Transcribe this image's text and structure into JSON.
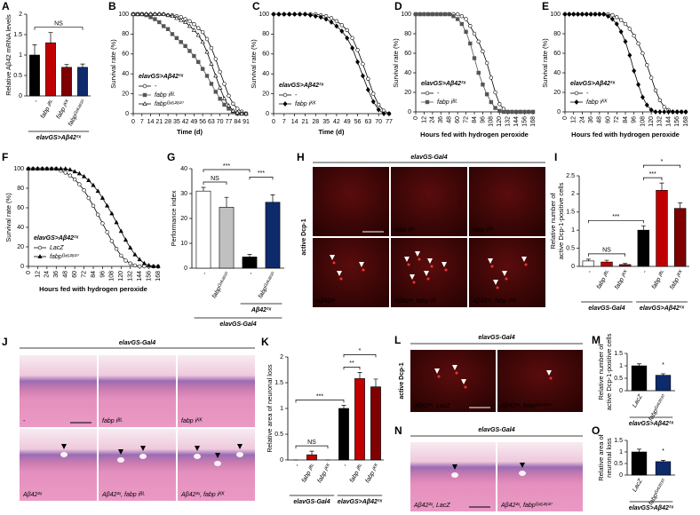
{
  "chart_data": [
    {
      "panel": "A",
      "type": "bar",
      "ylabel": "Relative Aβ42 mRNA levels",
      "categories": [
        "-",
        "fabp iᴮᴸ",
        "fabp iᴷᴷ",
        "fabpᴳˣ⁶²⁸¹⁰"
      ],
      "values": [
        1.0,
        1.3,
        0.7,
        0.7
      ],
      "errors": [
        0.25,
        0.25,
        0.07,
        0.08
      ],
      "colors": [
        "#000000",
        "#c00000",
        "#7f0000",
        "#0d2a6b"
      ],
      "ylim": [
        0,
        2
      ],
      "yticks": [
        0,
        0.5,
        1,
        1.5,
        2
      ],
      "annotations": [
        "NS"
      ],
      "groups": [
        "elavGS>Aβ42²ˣ"
      ]
    },
    {
      "panel": "B",
      "type": "line",
      "ylabel": "Survival rate (%)",
      "xlabel": "Time (d)",
      "annotation": "elavGS>Aβ42²ˣ",
      "x": [
        0,
        3.5,
        7,
        10.5,
        14,
        17.5,
        21,
        24.5,
        28,
        31.5,
        35,
        38.5,
        42,
        45.5,
        49,
        52.5,
        56,
        59.5,
        63,
        66.5,
        70,
        73.5,
        77,
        80.5,
        84,
        87.5,
        91
      ],
      "xlim": [
        0,
        91
      ],
      "xticks": [
        0,
        7,
        14,
        21,
        28,
        35,
        42,
        49,
        56,
        63,
        70,
        77,
        84,
        91
      ],
      "ylim": [
        0,
        100
      ],
      "yticks": [
        0,
        20,
        40,
        60,
        80,
        100
      ],
      "series": [
        {
          "name": "-",
          "color": "#000000",
          "marker": "circle",
          "marker_fill": "#ffffff",
          "values": [
            100,
            100,
            100,
            100,
            100,
            100,
            100,
            100,
            99,
            99,
            98,
            97,
            95,
            93,
            90,
            86,
            82,
            75,
            66,
            55,
            42,
            30,
            18,
            10,
            5,
            2,
            0
          ]
        },
        {
          "name": "fabp iᴮᴸ",
          "color": "#555555",
          "marker": "square",
          "marker_fill": "#555555",
          "values": [
            100,
            100,
            100,
            99,
            97,
            95,
            92,
            88,
            85,
            80,
            76,
            72,
            68,
            63,
            58,
            52,
            45,
            38,
            30,
            22,
            15,
            9,
            5,
            2,
            0,
            0,
            0
          ]
        },
        {
          "name": "fabpᴳˣ⁶²⁸¹⁰",
          "color": "#000000",
          "marker": "triangle",
          "marker_fill": "#ffffff",
          "values": [
            100,
            100,
            100,
            100,
            100,
            100,
            100,
            100,
            99,
            98,
            96,
            94,
            92,
            88,
            84,
            79,
            72,
            62,
            50,
            38,
            26,
            15,
            8,
            3,
            1,
            0,
            0
          ]
        }
      ]
    },
    {
      "panel": "C",
      "type": "line",
      "ylabel": "Survival rate (%)",
      "xlabel": "Time (d)",
      "annotation": "elavGS>Aβ42²ˣ",
      "x": [
        0,
        3.5,
        7,
        10.5,
        14,
        17.5,
        21,
        24.5,
        28,
        31.5,
        35,
        38.5,
        42,
        45.5,
        49,
        52.5,
        56,
        59.5,
        63,
        66.5,
        70,
        73.5,
        77
      ],
      "xlim": [
        0,
        77
      ],
      "xticks": [
        0,
        7,
        14,
        21,
        28,
        35,
        42,
        49,
        56,
        63,
        70,
        77
      ],
      "ylim": [
        0,
        100
      ],
      "yticks": [
        0,
        20,
        40,
        60,
        80,
        100
      ],
      "series": [
        {
          "name": "-",
          "color": "#000000",
          "marker": "circle",
          "marker_fill": "#ffffff",
          "values": [
            100,
            100,
            100,
            100,
            100,
            100,
            100,
            100,
            100,
            99,
            98,
            96,
            93,
            89,
            84,
            76,
            64,
            50,
            35,
            20,
            9,
            3,
            0
          ]
        },
        {
          "name": "fabp iᴷᴷ",
          "color": "#000000",
          "marker": "diamond",
          "marker_fill": "#000000",
          "values": [
            100,
            100,
            100,
            100,
            100,
            100,
            100,
            99,
            98,
            97,
            95,
            92,
            88,
            83,
            76,
            66,
            52,
            38,
            24,
            12,
            4,
            0,
            0
          ]
        }
      ]
    },
    {
      "panel": "D",
      "type": "line",
      "ylabel": "Survival rate (%)",
      "xlabel": "Hours fed with hydrogen peroxide",
      "annotation": "elavGS>Aβ42²ˣ",
      "x": [
        0,
        6,
        12,
        18,
        24,
        30,
        36,
        42,
        48,
        54,
        60,
        66,
        72,
        78,
        84,
        90,
        96,
        102,
        108,
        114,
        120,
        126,
        132,
        138,
        144,
        150,
        156,
        162,
        168
      ],
      "xlim": [
        0,
        168
      ],
      "xticks": [
        0,
        12,
        24,
        36,
        48,
        60,
        72,
        84,
        96,
        108,
        120,
        132,
        144,
        156,
        168
      ],
      "ylim": [
        0,
        100
      ],
      "yticks": [
        0,
        20,
        40,
        60,
        80,
        100
      ],
      "series": [
        {
          "name": "-",
          "color": "#000000",
          "marker": "circle",
          "marker_fill": "#ffffff",
          "values": [
            100,
            100,
            100,
            100,
            100,
            100,
            100,
            100,
            100,
            100,
            100,
            98,
            95,
            88,
            80,
            72,
            62,
            50,
            35,
            20,
            8,
            3,
            0,
            0,
            0,
            0,
            0,
            0,
            0
          ]
        },
        {
          "name": "fabp iᴮᴸ",
          "color": "#555555",
          "marker": "square",
          "marker_fill": "#555555",
          "values": [
            100,
            100,
            100,
            100,
            100,
            100,
            100,
            100,
            100,
            98,
            95,
            90,
            82,
            70,
            55,
            40,
            28,
            18,
            10,
            4,
            1,
            0,
            0,
            0,
            0,
            0,
            0,
            0,
            0
          ]
        }
      ]
    },
    {
      "panel": "E",
      "type": "line",
      "ylabel": "Survival rate (%)",
      "xlabel": "Hours fed with hydrogen peroxide",
      "annotation": "elavGS>Aβ42²ˣ",
      "x": [
        0,
        6,
        12,
        18,
        24,
        30,
        36,
        42,
        48,
        54,
        60,
        66,
        72,
        78,
        84,
        90,
        96,
        102,
        108,
        114,
        120,
        126,
        132,
        138,
        144,
        150,
        156,
        162,
        168
      ],
      "xlim": [
        0,
        168
      ],
      "xticks": [
        0,
        12,
        24,
        36,
        48,
        60,
        72,
        84,
        96,
        108,
        120,
        132,
        144,
        156,
        168
      ],
      "ylim": [
        0,
        100
      ],
      "yticks": [
        0,
        20,
        40,
        60,
        80,
        100
      ],
      "series": [
        {
          "name": "-",
          "color": "#000000",
          "marker": "circle",
          "marker_fill": "#ffffff",
          "values": [
            100,
            100,
            100,
            100,
            100,
            100,
            100,
            100,
            100,
            100,
            100,
            99,
            97,
            94,
            90,
            85,
            78,
            70,
            60,
            48,
            35,
            22,
            12,
            5,
            2,
            0,
            0,
            0,
            0
          ]
        },
        {
          "name": "fabp iᴷᴷ",
          "color": "#000000",
          "marker": "diamond",
          "marker_fill": "#000000",
          "values": [
            100,
            100,
            100,
            100,
            100,
            100,
            100,
            100,
            100,
            100,
            98,
            95,
            90,
            82,
            72,
            58,
            42,
            28,
            15,
            7,
            2,
            0,
            0,
            0,
            0,
            0,
            0,
            0,
            0
          ]
        }
      ]
    },
    {
      "panel": "F",
      "type": "line",
      "ylabel": "Survival rate (%)",
      "xlabel": "Hours fed with hydrogen peroxide",
      "annotation": "elavGS>Aβ42²ˣ",
      "x": [
        0,
        6,
        12,
        18,
        24,
        30,
        36,
        42,
        48,
        54,
        60,
        66,
        72,
        78,
        84,
        90,
        96,
        102,
        108,
        114,
        120,
        126,
        132,
        138,
        144,
        150,
        156,
        162,
        168
      ],
      "xlim": [
        0,
        168
      ],
      "xticks": [
        0,
        12,
        24,
        36,
        48,
        60,
        72,
        84,
        96,
        108,
        120,
        132,
        144,
        156,
        168
      ],
      "ylim": [
        0,
        100
      ],
      "yticks": [
        0,
        20,
        40,
        60,
        80,
        100
      ],
      "series": [
        {
          "name": "LacZ",
          "color": "#000000",
          "marker": "circle",
          "marker_fill": "#ffffff",
          "values": [
            100,
            100,
            100,
            100,
            100,
            100,
            100,
            98,
            96,
            93,
            89,
            84,
            78,
            70,
            62,
            53,
            44,
            35,
            26,
            18,
            11,
            6,
            3,
            1,
            0,
            0,
            0,
            0,
            0
          ]
        },
        {
          "name": "fabpᴳˣ⁶²⁸¹⁰",
          "color": "#000000",
          "marker": "triangle",
          "marker_fill": "#000000",
          "values": [
            100,
            100,
            100,
            100,
            100,
            100,
            100,
            100,
            100,
            99,
            97,
            95,
            92,
            88,
            83,
            77,
            70,
            62,
            54,
            45,
            36,
            27,
            19,
            12,
            7,
            3,
            1,
            0,
            0
          ]
        }
      ]
    },
    {
      "panel": "G",
      "type": "bar",
      "ylabel": "Performance index",
      "categories": [
        "-",
        "fabpᴳˣ⁶²⁸¹⁰",
        "-",
        "fabpᴳˣ⁶²⁸¹⁰"
      ],
      "values": [
        31,
        24.5,
        4.5,
        26.5
      ],
      "errors": [
        1.5,
        4,
        1,
        3
      ],
      "colors": [
        "#ffffff",
        "#c0c0c0",
        "#000000",
        "#0d2a6b"
      ],
      "ylim": [
        0,
        40
      ],
      "yticks": [
        0,
        10,
        20,
        30,
        40
      ],
      "annotations": [
        "NS",
        "***",
        "***"
      ],
      "groups": [
        "Aβ42²ˣ",
        "elavGS-Gal4"
      ]
    },
    {
      "panel": "I",
      "type": "bar",
      "ylabel": [
        "Relative number of",
        "active Dcp-1-positive cells"
      ],
      "categories": [
        "-",
        "fabp iᴮᴸ",
        "fabp iᴷᴷ",
        "-",
        "fabp iᴮᴸ",
        "fabp iᴷᴷ"
      ],
      "values": [
        0.15,
        0.12,
        0.05,
        1.0,
        2.1,
        1.6
      ],
      "errors": [
        0.05,
        0.05,
        0.03,
        0.12,
        0.2,
        0.15
      ],
      "colors": [
        "#ffffff",
        "#c00000",
        "#7f0000",
        "#000000",
        "#c00000",
        "#7f0000"
      ],
      "ylim": [
        0,
        2.5
      ],
      "yticks": [
        0,
        0.5,
        1,
        1.5,
        2,
        2.5
      ],
      "annotations": [
        "NS",
        "***",
        "***",
        "*"
      ],
      "groups": [
        "elavGS-Gal4",
        "elavGS>Aβ42²ˣ"
      ]
    },
    {
      "panel": "K",
      "type": "bar",
      "ylabel": "Relative area of neuronal loss",
      "categories": [
        "-",
        "fabp iᴮᴸ",
        "fabp iᴷᴷ",
        "-",
        "fabp iᴮᴸ",
        "fabp iᴷᴷ"
      ],
      "values": [
        0,
        0.1,
        0,
        1.0,
        1.58,
        1.42
      ],
      "errors": [
        0,
        0.07,
        0,
        0.06,
        0.12,
        0.15
      ],
      "colors": [
        "#ffffff",
        "#c00000",
        "#7f0000",
        "#000000",
        "#c00000",
        "#7f0000"
      ],
      "ylim": [
        0,
        2
      ],
      "yticks": [
        0,
        0.5,
        1,
        1.5,
        2
      ],
      "annotations": [
        "NS",
        "***",
        "**",
        "*"
      ],
      "groups": [
        "elavGS-Gal4",
        "elavGS>Aβ42²ˣ"
      ]
    },
    {
      "panel": "M",
      "type": "bar",
      "ylabel": [
        "Relative number of",
        "active Dcp-1-positive cells"
      ],
      "categories": [
        "LacZ",
        "fabpᴳˣ⁶²⁸¹⁰"
      ],
      "values": [
        1.0,
        0.62
      ],
      "errors": [
        0.08,
        0.06
      ],
      "colors": [
        "#000000",
        "#0d2a6b"
      ],
      "ylim": [
        0,
        1.5
      ],
      "yticks": [
        0,
        0.5,
        1,
        1.5
      ],
      "annotations": [
        "*"
      ],
      "groups": [
        "elavGS>Aβ42²ˣ"
      ]
    },
    {
      "panel": "O",
      "type": "bar",
      "ylabel": [
        "Relative area of",
        "neuronal loss"
      ],
      "categories": [
        "LacZ",
        "fabpᴳˣ⁶²⁸¹⁰"
      ],
      "values": [
        1.0,
        0.58
      ],
      "errors": [
        0.12,
        0.06
      ],
      "colors": [
        "#000000",
        "#0d2a6b"
      ],
      "ylim": [
        0,
        1.5
      ],
      "yticks": [
        0,
        0.5,
        1,
        1.5
      ],
      "annotations": [
        "*"
      ],
      "groups": [
        "elavGS>Aβ42²ˣ"
      ]
    }
  ],
  "images": [
    {
      "panel": "H",
      "title": "elavGS-Gal4",
      "side_label": "active Dcp-1",
      "labels": [
        "-",
        "fabp iᴮᴸ",
        "fabp iᴷᴷ",
        "Aβ42²ˣ",
        "Aβ42²ˣ, fabp iᴮᴸ",
        "Aβ42²ˣ, fabp iᴷᴷ"
      ]
    },
    {
      "panel": "J",
      "title": "elavGS-Gal4",
      "labels": [
        "-",
        "fabp iᴮᴸ",
        "fabp iᴷᴷ",
        "Aβ42²ˣ",
        "Aβ42²ˣ, fabp iᴮᴸ",
        "Aβ42²ˣ, fabp iᴷᴷ"
      ]
    },
    {
      "panel": "L",
      "title": "elavGS-Gal4",
      "side_label": "active Dcp-1",
      "labels": [
        "Aβ42²ˣ, LacZ",
        "Aβ42²ˣ, fabpᴳˣ⁶²⁸¹⁰"
      ]
    },
    {
      "panel": "N",
      "title": "elavGS-Gal4",
      "labels": [
        "Aβ42²ˣ, LacZ",
        "Aβ42²ˣ, fabpᴳˣ⁶²⁸¹⁰"
      ]
    }
  ]
}
